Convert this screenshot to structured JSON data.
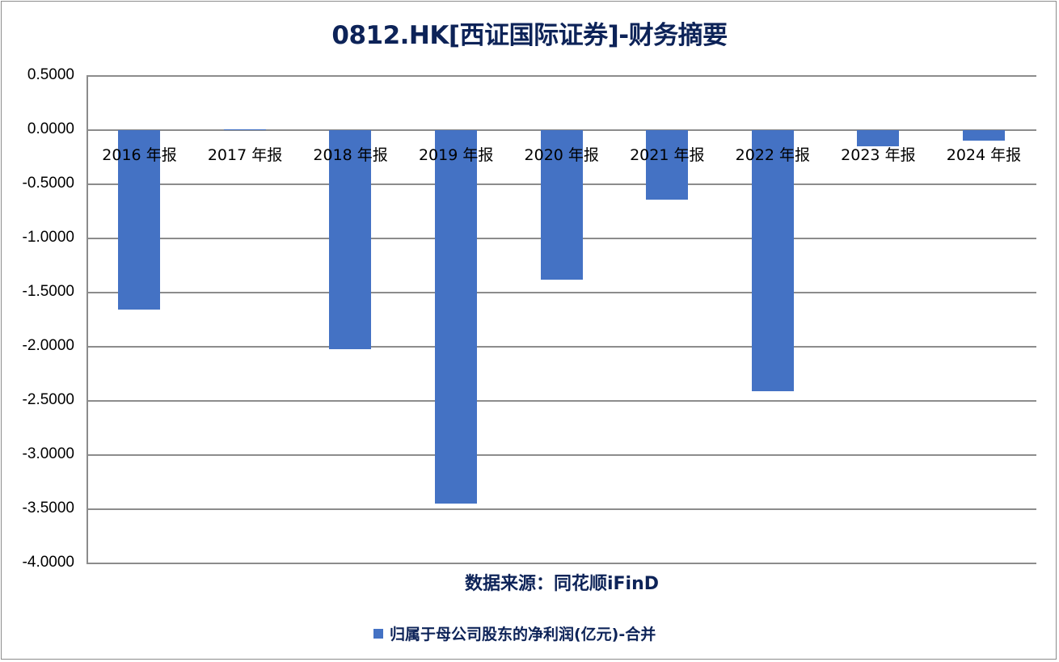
{
  "title": "0812.HK[西证国际证券]-财务摘要",
  "source_note": "数据来源：同花顺iFinD",
  "colors": {
    "bar": "#4472c4",
    "title": "#0d2358",
    "grid": "#8c8c8c"
  },
  "y_ticks": [
    "0.5000",
    "0.0000",
    "-0.5000",
    "-1.0000",
    "-1.5000",
    "-2.0000",
    "-2.5000",
    "-3.0000",
    "-3.5000",
    "-4.0000"
  ],
  "x_labels": [
    "2016 年报",
    "2017 年报",
    "2018 年报",
    "2019 年报",
    "2020 年报",
    "2021 年报",
    "2022 年报",
    "2023 年报",
    "2024 年报"
  ],
  "legend": {
    "label": "归属于母公司股东的净利润(亿元)-合并"
  },
  "chart_data": {
    "type": "bar",
    "title": "0812.HK[西证国际证券]-财务摘要",
    "categories": [
      "2016 年报",
      "2017 年报",
      "2018 年报",
      "2019 年报",
      "2020 年报",
      "2021 年报",
      "2022 年报",
      "2023 年报",
      "2024 年报"
    ],
    "series": [
      {
        "name": "归属于母公司股东的净利润(亿元)-合并",
        "values": [
          -1.66,
          0.01,
          -2.02,
          -3.45,
          -1.38,
          -0.64,
          -2.41,
          -0.15,
          -0.1
        ],
        "color": "#4472c4"
      }
    ],
    "xlabel": "",
    "ylabel": "",
    "ylim": [
      -4.0,
      0.5
    ],
    "y_tick_step": 0.5,
    "grid": true,
    "legend_position": "bottom",
    "annotations": [
      "数据来源：同花顺iFinD"
    ]
  }
}
